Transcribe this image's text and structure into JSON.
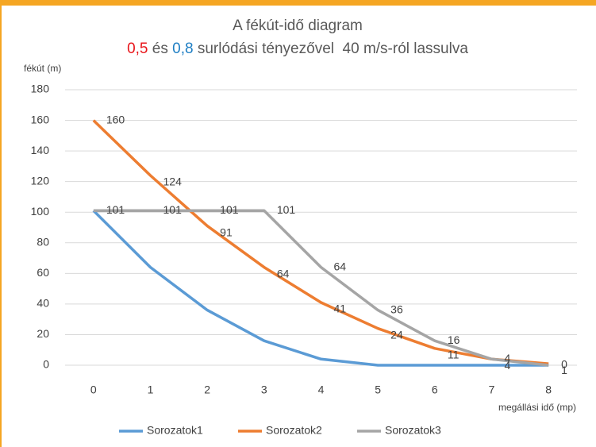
{
  "chart_data": {
    "type": "line",
    "title": "A fékút-idő diagram",
    "subtitle": [
      {
        "text": "0,5",
        "color": "#e8161b"
      },
      {
        "text": " és ",
        "color": "#595959"
      },
      {
        "text": "0,8",
        "color": "#1f7fc4"
      },
      {
        "text": " surlódási tényezővel  40 m/s-ról lassulva",
        "color": "#595959"
      }
    ],
    "y_label": "fékút (m)",
    "x_label": "megállási idő (mp)",
    "categories": [
      "0",
      "1",
      "2",
      "3",
      "4",
      "5",
      "6",
      "7",
      "8"
    ],
    "ylim": [
      0,
      180
    ],
    "yticks": [
      0,
      20,
      40,
      60,
      80,
      100,
      120,
      140,
      160,
      180
    ],
    "grid": true,
    "series": [
      {
        "name": "Sorozatok1",
        "color": "#5b9bd5",
        "values": [
          101,
          64,
          36,
          16,
          4,
          0,
          0,
          0,
          0
        ],
        "labels": false
      },
      {
        "name": "Sorozatok2",
        "color": "#ed7d31",
        "values": [
          160,
          124,
          91,
          64,
          41,
          24,
          11,
          4,
          1
        ],
        "labels": true
      },
      {
        "name": "Sorozatok3",
        "color": "#a5a5a5",
        "values": [
          101,
          101,
          101,
          101,
          64,
          36,
          16,
          4,
          0
        ],
        "labels": true
      }
    ]
  }
}
